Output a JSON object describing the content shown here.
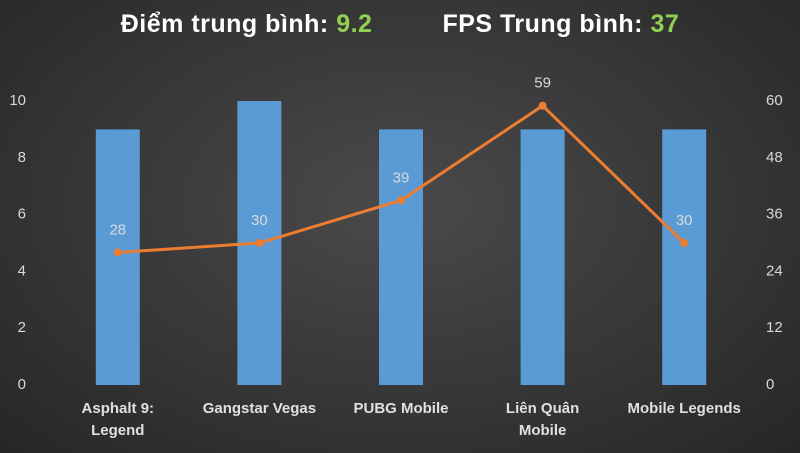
{
  "chart_data": {
    "type": "bar-line",
    "summary": [
      {
        "label": "Điểm trung bình:",
        "value": 9.2
      },
      {
        "label": "FPS Trung bình:",
        "value": 37
      }
    ],
    "categories": [
      "Asphalt 9:\nLegend",
      "Gangstar Vegas",
      "PUBG Mobile",
      "Liên Quân\nMobile",
      "Mobile Legends"
    ],
    "series": [
      {
        "type": "bar",
        "color": "#5b9bd5",
        "values": [
          9,
          10,
          9,
          9,
          9
        ]
      },
      {
        "type": "line",
        "color": "#ed7d31",
        "axis": "y2",
        "values": [
          28,
          30,
          39,
          59,
          30
        ]
      }
    ],
    "ylim": [
      0,
      10
    ],
    "yticks": [
      0,
      2,
      4,
      6,
      8,
      10
    ],
    "y2lim": [
      0,
      60
    ],
    "y2ticks": [
      0,
      12,
      24,
      36,
      48,
      60
    ],
    "summary_value_color": "#92d050"
  }
}
